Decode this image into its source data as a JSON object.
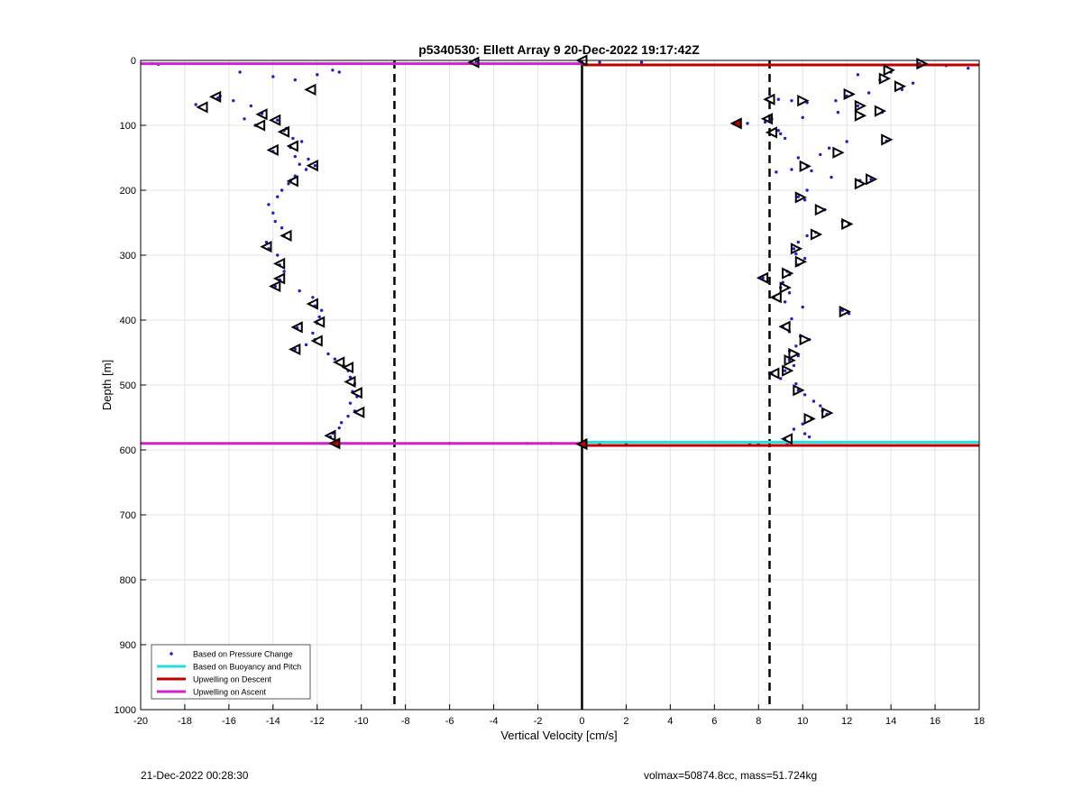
{
  "chart_data": {
    "type": "scatter",
    "title": "p5340530: Ellett Array 9 20-Dec-2022 19:17:42Z",
    "xlabel": "Vertical Velocity [cm/s]",
    "ylabel": "Depth [m]",
    "xlim": [
      -20,
      18
    ],
    "ylim": [
      0,
      1000
    ],
    "y_reversed": true,
    "grid": true,
    "x_ticks": [
      -20,
      -18,
      -16,
      -14,
      -12,
      -10,
      -8,
      -6,
      -4,
      -2,
      0,
      2,
      4,
      6,
      8,
      10,
      12,
      14,
      16,
      18
    ],
    "y_ticks": [
      0,
      100,
      200,
      300,
      400,
      500,
      600,
      700,
      800,
      900,
      1000
    ],
    "legend": {
      "placement": "bottom-left",
      "entries": [
        {
          "label": "Based on Pressure Change",
          "color": "#1f1fd0",
          "style": "dot"
        },
        {
          "label": "Based on Buoyancy and Pitch",
          "color": "#22e0e0",
          "style": "line"
        },
        {
          "label": "Upwelling on Descent",
          "color": "#c00000",
          "style": "line"
        },
        {
          "label": "Upwelling on Ascent",
          "color": "#d020d0",
          "style": "line"
        }
      ]
    },
    "reference_lines": {
      "zero_line_x": 0,
      "dashed_lines_x": [
        -8.5,
        8.5
      ]
    },
    "horizontal_lines": [
      {
        "name": "Upwelling on Descent",
        "color": "#c00000",
        "y": 7,
        "x_range": [
          0,
          18
        ]
      },
      {
        "name": "Upwelling on Ascent",
        "color": "#d020d0",
        "y": 5,
        "x_range": [
          -20,
          0
        ]
      },
      {
        "name": "Based on Buoyancy and Pitch",
        "color": "#22e0e0",
        "y": 588,
        "x_range": [
          0,
          18
        ]
      },
      {
        "name": "Upwelling on Descent",
        "color": "#c00000",
        "y": 593,
        "x_range": [
          0,
          18
        ]
      },
      {
        "name": "Upwelling on Ascent",
        "color": "#d020d0",
        "y": 590,
        "x_range": [
          -20,
          0
        ]
      }
    ],
    "ascent_profile": [
      [
        -19.5,
        5
      ],
      [
        -19.2,
        6
      ],
      [
        -15.5,
        18
      ],
      [
        -14,
        25
      ],
      [
        -13,
        30
      ],
      [
        -12,
        22
      ],
      [
        -11.3,
        15
      ],
      [
        -11,
        18
      ],
      [
        -17.5,
        68
      ],
      [
        -16.5,
        58
      ],
      [
        -15.8,
        62
      ],
      [
        -15,
        70
      ],
      [
        -14.5,
        82
      ],
      [
        -13.8,
        92
      ],
      [
        -14.8,
        100
      ],
      [
        -13.5,
        108
      ],
      [
        -13.1,
        120
      ],
      [
        -12.7,
        125
      ],
      [
        -13.2,
        134
      ],
      [
        -14,
        140
      ],
      [
        -13,
        148
      ],
      [
        -12.4,
        152
      ],
      [
        -12.1,
        162
      ],
      [
        -12.5,
        168
      ],
      [
        -13,
        178
      ],
      [
        -13.3,
        190
      ],
      [
        -13.6,
        200
      ],
      [
        -13.8,
        210
      ],
      [
        -14.2,
        222
      ],
      [
        -14,
        235
      ],
      [
        -13.9,
        248
      ],
      [
        -13.6,
        258
      ],
      [
        -13.5,
        270
      ],
      [
        -14.3,
        280
      ],
      [
        -14.2,
        290
      ],
      [
        -13.8,
        300
      ],
      [
        -13.7,
        315
      ],
      [
        -13.5,
        325
      ],
      [
        -13.7,
        338
      ],
      [
        -13.9,
        348
      ],
      [
        -12.8,
        355
      ],
      [
        -12.2,
        365
      ],
      [
        -12.1,
        378
      ],
      [
        -11.8,
        385
      ],
      [
        -11.9,
        395
      ],
      [
        -12,
        405
      ],
      [
        -12.9,
        412
      ],
      [
        -12.2,
        420
      ],
      [
        -12.1,
        430
      ],
      [
        -12.5,
        438
      ],
      [
        -13,
        445
      ],
      [
        -11.5,
        452
      ],
      [
        -11.2,
        460
      ],
      [
        -10.8,
        470
      ],
      [
        -10.6,
        478
      ],
      [
        -10.5,
        488
      ],
      [
        -10.3,
        498
      ],
      [
        -10.4,
        510
      ],
      [
        -10.2,
        518
      ],
      [
        -10.5,
        528
      ],
      [
        -10.3,
        540
      ],
      [
        -10.6,
        548
      ],
      [
        -10.9,
        558
      ],
      [
        -11,
        566
      ],
      [
        -11.3,
        574
      ],
      [
        -11.4,
        580
      ],
      [
        -11.2,
        590
      ],
      [
        -6,
        590
      ],
      [
        -2.5,
        590
      ],
      [
        -1.4,
        590
      ],
      [
        -4.8,
        3
      ],
      [
        -5,
        2
      ],
      [
        -16.4,
        55
      ],
      [
        -15.3,
        90
      ],
      [
        -13.4,
        105
      ],
      [
        -12.8,
        160
      ],
      [
        -13.2,
        185
      ]
    ],
    "descent_profile": [
      [
        15.3,
        5
      ],
      [
        16.5,
        8
      ],
      [
        17.5,
        12
      ],
      [
        14,
        18
      ],
      [
        12.5,
        22
      ],
      [
        13.5,
        30
      ],
      [
        15,
        35
      ],
      [
        14.5,
        45
      ],
      [
        13,
        50
      ],
      [
        12,
        55
      ],
      [
        11.5,
        62
      ],
      [
        9.5,
        62
      ],
      [
        10.2,
        65
      ],
      [
        8.9,
        60
      ],
      [
        12.5,
        70
      ],
      [
        13.6,
        80
      ],
      [
        11.6,
        80
      ],
      [
        10,
        88
      ],
      [
        8.6,
        90
      ],
      [
        8.3,
        95
      ],
      [
        6.9,
        98
      ],
      [
        7.5,
        97
      ],
      [
        8.9,
        108
      ],
      [
        9,
        113
      ],
      [
        9.2,
        120
      ],
      [
        12,
        125
      ],
      [
        13.8,
        124
      ],
      [
        11.2,
        135
      ],
      [
        10.8,
        145
      ],
      [
        9.8,
        150
      ],
      [
        10.2,
        162
      ],
      [
        9.5,
        168
      ],
      [
        8.8,
        172
      ],
      [
        10.4,
        170
      ],
      [
        11.3,
        180
      ],
      [
        12.6,
        185
      ],
      [
        13.1,
        183
      ],
      [
        10.2,
        200
      ],
      [
        9.8,
        210
      ],
      [
        10.1,
        215
      ],
      [
        11,
        230
      ],
      [
        11.8,
        248
      ],
      [
        12.1,
        253
      ],
      [
        10.6,
        265
      ],
      [
        10.2,
        270
      ],
      [
        9.8,
        280
      ],
      [
        9.6,
        290
      ],
      [
        9.7,
        298
      ],
      [
        10.1,
        305
      ],
      [
        9.8,
        315
      ],
      [
        9.3,
        325
      ],
      [
        9.4,
        330
      ],
      [
        8.2,
        335
      ],
      [
        9.1,
        342
      ],
      [
        9,
        350
      ],
      [
        9.4,
        358
      ],
      [
        8.7,
        365
      ],
      [
        9.2,
        372
      ],
      [
        10,
        380
      ],
      [
        11.8,
        385
      ],
      [
        12.1,
        390
      ],
      [
        9.5,
        398
      ],
      [
        9.1,
        410
      ],
      [
        9.4,
        418
      ],
      [
        9.9,
        425
      ],
      [
        10.3,
        430
      ],
      [
        9.7,
        440
      ],
      [
        9.4,
        448
      ],
      [
        9.8,
        455
      ],
      [
        9.4,
        462
      ],
      [
        9.6,
        470
      ],
      [
        9.2,
        478
      ],
      [
        8.6,
        482
      ],
      [
        9,
        490
      ],
      [
        9.7,
        498
      ],
      [
        9.8,
        508
      ],
      [
        10.1,
        515
      ],
      [
        10.5,
        525
      ],
      [
        10.8,
        532
      ],
      [
        10.9,
        540
      ],
      [
        11.1,
        545
      ],
      [
        10.4,
        552
      ],
      [
        10,
        560
      ],
      [
        9.6,
        568
      ],
      [
        10.1,
        575
      ],
      [
        10.3,
        580
      ],
      [
        9.2,
        584
      ],
      [
        9.3,
        590
      ],
      [
        8,
        590
      ],
      [
        7.6,
        590
      ],
      [
        2,
        590
      ],
      [
        0.8,
        590
      ],
      [
        2.7,
        3
      ],
      [
        0.8,
        3
      ]
    ],
    "triangle_markers": [
      {
        "x": -4.9,
        "y": 3,
        "dir": "left"
      },
      {
        "x": 0,
        "y": 0,
        "dir": "left"
      },
      {
        "x": 15.4,
        "y": 5,
        "dir": "right"
      },
      {
        "x": 13.9,
        "y": 15,
        "dir": "right"
      },
      {
        "x": 14.4,
        "y": 40,
        "dir": "right"
      },
      {
        "x": 13.7,
        "y": 28,
        "dir": "right"
      },
      {
        "x": 12.1,
        "y": 52,
        "dir": "right"
      },
      {
        "x": 12.6,
        "y": 70,
        "dir": "right"
      },
      {
        "x": 13.5,
        "y": 78,
        "dir": "right"
      },
      {
        "x": 12.6,
        "y": 85,
        "dir": "right"
      },
      {
        "x": 10,
        "y": 62,
        "dir": "right"
      },
      {
        "x": 8.5,
        "y": 60,
        "dir": "left"
      },
      {
        "x": 8.4,
        "y": 90,
        "dir": "left"
      },
      {
        "x": 7,
        "y": 97,
        "dir": "left",
        "red": true
      },
      {
        "x": 8.6,
        "y": 111,
        "dir": "left"
      },
      {
        "x": 13.8,
        "y": 122,
        "dir": "right"
      },
      {
        "x": 11.6,
        "y": 142,
        "dir": "right"
      },
      {
        "x": 10.1,
        "y": 163,
        "dir": "right"
      },
      {
        "x": 13.1,
        "y": 183,
        "dir": "right"
      },
      {
        "x": 12.6,
        "y": 190,
        "dir": "right"
      },
      {
        "x": 9.9,
        "y": 211,
        "dir": "right"
      },
      {
        "x": 10.8,
        "y": 230,
        "dir": "right"
      },
      {
        "x": 12,
        "y": 252,
        "dir": "right"
      },
      {
        "x": 10.6,
        "y": 268,
        "dir": "right"
      },
      {
        "x": 9.7,
        "y": 290,
        "dir": "right"
      },
      {
        "x": 9.9,
        "y": 310,
        "dir": "right"
      },
      {
        "x": 9.3,
        "y": 328,
        "dir": "right"
      },
      {
        "x": 8.2,
        "y": 335,
        "dir": "left"
      },
      {
        "x": 9.2,
        "y": 350,
        "dir": "right"
      },
      {
        "x": 8.8,
        "y": 365,
        "dir": "left"
      },
      {
        "x": 11.9,
        "y": 387,
        "dir": "right"
      },
      {
        "x": 9.2,
        "y": 410,
        "dir": "left"
      },
      {
        "x": 10.1,
        "y": 430,
        "dir": "right"
      },
      {
        "x": 9.6,
        "y": 452,
        "dir": "right"
      },
      {
        "x": 9.4,
        "y": 462,
        "dir": "right"
      },
      {
        "x": 9.3,
        "y": 478,
        "dir": "right"
      },
      {
        "x": 8.7,
        "y": 482,
        "dir": "left"
      },
      {
        "x": 9.8,
        "y": 508,
        "dir": "right"
      },
      {
        "x": 11.1,
        "y": 543,
        "dir": "right"
      },
      {
        "x": 10.3,
        "y": 552,
        "dir": "right"
      },
      {
        "x": 9.3,
        "y": 583,
        "dir": "left"
      },
      {
        "x": -16.6,
        "y": 56,
        "dir": "left"
      },
      {
        "x": -17.2,
        "y": 72,
        "dir": "left"
      },
      {
        "x": -12.3,
        "y": 45,
        "dir": "left"
      },
      {
        "x": -14.5,
        "y": 83,
        "dir": "left"
      },
      {
        "x": -14.6,
        "y": 100,
        "dir": "left"
      },
      {
        "x": -13.9,
        "y": 92,
        "dir": "left"
      },
      {
        "x": -13.5,
        "y": 110,
        "dir": "left"
      },
      {
        "x": -13.1,
        "y": 132,
        "dir": "left"
      },
      {
        "x": -14,
        "y": 138,
        "dir": "left"
      },
      {
        "x": -12.2,
        "y": 162,
        "dir": "left"
      },
      {
        "x": -13.1,
        "y": 186,
        "dir": "left"
      },
      {
        "x": -13.4,
        "y": 270,
        "dir": "left"
      },
      {
        "x": -14.3,
        "y": 287,
        "dir": "left"
      },
      {
        "x": -13.7,
        "y": 313,
        "dir": "left"
      },
      {
        "x": -13.7,
        "y": 336,
        "dir": "left"
      },
      {
        "x": -13.9,
        "y": 348,
        "dir": "left"
      },
      {
        "x": -12.2,
        "y": 375,
        "dir": "left"
      },
      {
        "x": -11.9,
        "y": 403,
        "dir": "left"
      },
      {
        "x": -12.9,
        "y": 411,
        "dir": "left"
      },
      {
        "x": -12,
        "y": 432,
        "dir": "left"
      },
      {
        "x": -13,
        "y": 445,
        "dir": "left"
      },
      {
        "x": -11,
        "y": 465,
        "dir": "left"
      },
      {
        "x": -10.6,
        "y": 473,
        "dir": "left"
      },
      {
        "x": -10.5,
        "y": 495,
        "dir": "left"
      },
      {
        "x": -10.2,
        "y": 512,
        "dir": "left"
      },
      {
        "x": -10.1,
        "y": 542,
        "dir": "left"
      },
      {
        "x": -11.4,
        "y": 578,
        "dir": "left"
      },
      {
        "x": -11.2,
        "y": 590,
        "dir": "left",
        "red": true
      },
      {
        "x": 0,
        "y": 591,
        "dir": "left",
        "red": true
      }
    ]
  },
  "footer": {
    "timestamp": "21-Dec-2022 00:28:30",
    "volmax_mass": "volmax=50874.8cc, mass=51.724kg"
  }
}
